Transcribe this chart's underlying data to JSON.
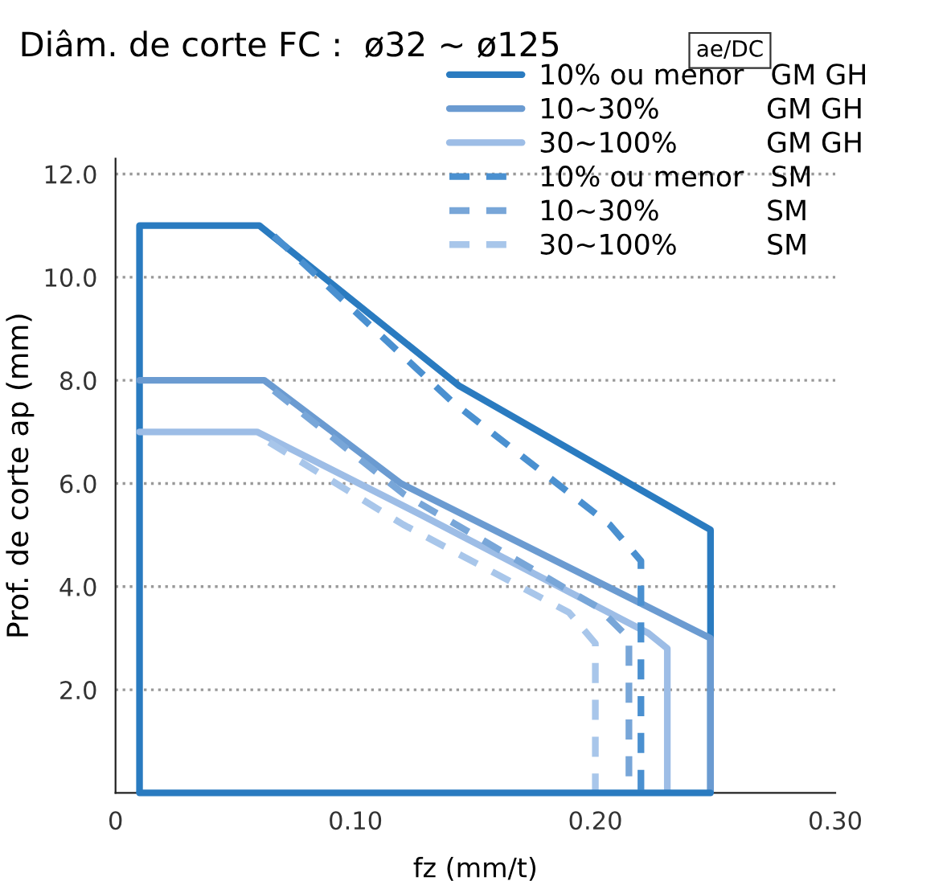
{
  "chart_data": {
    "type": "line",
    "title": "Diâm. de corte FC :  ø32 ~ ø125",
    "annotations": [
      "ae/DC"
    ],
    "xlabel": "fz (mm/t)",
    "ylabel": "Prof. de corte ap (mm)",
    "xlim": [
      0,
      0.3
    ],
    "ylim": [
      0,
      12.3
    ],
    "xticks": [
      0,
      {
        "value": 0.1,
        "label": "0.10"
      },
      {
        "value": 0.2,
        "label": "0.20"
      },
      {
        "value": 0.3,
        "label": "0.30"
      }
    ],
    "yticks": [
      {
        "value": 2,
        "label": "2.0"
      },
      {
        "value": 4,
        "label": "4.0"
      },
      {
        "value": 6,
        "label": "6.0"
      },
      {
        "value": 8,
        "label": "8.0"
      },
      {
        "value": 10,
        "label": "10.0"
      },
      {
        "value": 12,
        "label": "12.0"
      }
    ],
    "grid": "y",
    "legend": "top right",
    "marker": "none",
    "ref_lines": [
      {
        "axis": "y",
        "value": 0,
        "color": "#2a7bc0"
      }
    ],
    "series": [
      {
        "name": "10% ou menor   GM GH",
        "color": "#2a7bc0",
        "line_style": "solid",
        "x": [
          0.01,
          0.01,
          0.06,
          0.143,
          0.248,
          0.248
        ],
        "values": [
          0,
          11,
          11,
          7.9,
          5.1,
          0
        ]
      },
      {
        "name": "10~30%            GM GH",
        "color": "#6b9bd1",
        "line_style": "solid",
        "x": [
          0.01,
          0.062,
          0.119,
          0.248,
          0.248
        ],
        "values": [
          8,
          8,
          6.0,
          3.0,
          0
        ]
      },
      {
        "name": "30~100%          GM GH",
        "color": "#9dbde6",
        "line_style": "solid",
        "x": [
          0.01,
          0.059,
          0.127,
          0.222,
          0.23,
          0.23
        ],
        "values": [
          7,
          7,
          5.4,
          3.1,
          2.8,
          0
        ]
      },
      {
        "name": "10% ou menor   SM",
        "color": "#4a90d0",
        "line_style": "dashed",
        "x": [
          0.066,
          0.14,
          0.206,
          0.219,
          0.219
        ],
        "values": [
          10.8,
          7.6,
          5.2,
          4.5,
          0
        ]
      },
      {
        "name": "10~30%            SM",
        "color": "#78a6d8",
        "line_style": "dashed",
        "x": [
          0.066,
          0.12,
          0.201,
          0.214,
          0.214
        ],
        "values": [
          7.8,
          5.8,
          3.6,
          3.0,
          0
        ]
      },
      {
        "name": "30~100%          SM",
        "color": "#a8c6ea",
        "line_style": "dashed",
        "x": [
          0.064,
          0.12,
          0.189,
          0.2,
          0.2
        ],
        "values": [
          6.8,
          5.2,
          3.5,
          2.9,
          0
        ]
      }
    ]
  }
}
